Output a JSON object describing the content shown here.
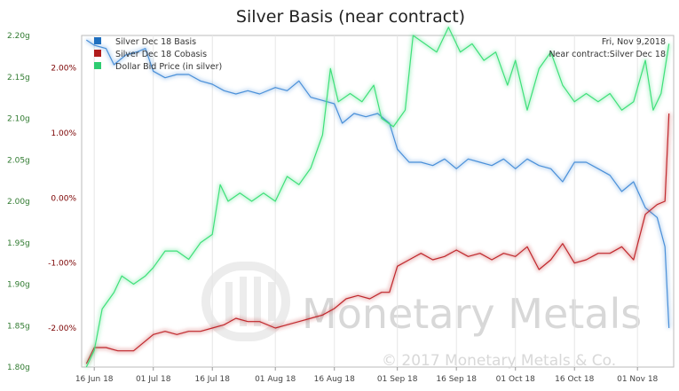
{
  "chart_data": {
    "type": "line",
    "title": "Silver Basis (near contract)",
    "x": [
      "16 Jun 18",
      "01 Jul 18",
      "16 Jul 18",
      "01 Aug 18",
      "16 Aug 18",
      "01 Sep 18",
      "16 Sep 18",
      "01 Oct 18",
      "16 Oct 18",
      "01 Nov 18"
    ],
    "y_left_ticks": [
      "1.80g",
      "1.85g",
      "1.90g",
      "1.95g",
      "2.00g",
      "2.05g",
      "2.10g",
      "2.15g",
      "2.20g"
    ],
    "y_mid_ticks": [
      "-2.00%",
      "-1.00%",
      "0.00%",
      "1.00%",
      "2.00%"
    ],
    "ylim_left": [
      1.8,
      2.2
    ],
    "ylim_mid": [
      -2.6,
      2.5
    ],
    "info": {
      "date": "Fri, Nov 9,2018",
      "contract": "Near contract:Silver Dec 18"
    },
    "watermark": {
      "logo": "Monetary Metals",
      "copyright": "© 2017 Monetary Metals & Co."
    },
    "colors": {
      "basis": "#4a90d9",
      "cobasis": "#c0282d",
      "price": "#3fe07a"
    },
    "legend_placement": "top-left",
    "series": [
      {
        "name": "Silver Dec 18 Basis",
        "color": "#4a90d9",
        "axis": "mid",
        "points": [
          [
            "14 Jun 18",
            2.43
          ],
          [
            "16 Jun 18",
            2.35
          ],
          [
            "19 Jun 18",
            2.3
          ],
          [
            "21 Jun 18",
            2.05
          ],
          [
            "24 Jun 18",
            2.2
          ],
          [
            "27 Jun 18",
            2.25
          ],
          [
            "29 Jun 18",
            2.3
          ],
          [
            "01 Jul 18",
            1.95
          ],
          [
            "04 Jul 18",
            1.85
          ],
          [
            "07 Jul 18",
            1.9
          ],
          [
            "10 Jul 18",
            1.9
          ],
          [
            "13 Jul 18",
            1.8
          ],
          [
            "16 Jul 18",
            1.75
          ],
          [
            "19 Jul 18",
            1.65
          ],
          [
            "22 Jul 18",
            1.6
          ],
          [
            "25 Jul 18",
            1.65
          ],
          [
            "28 Jul 18",
            1.6
          ],
          [
            "01 Aug 18",
            1.7
          ],
          [
            "04 Aug 18",
            1.65
          ],
          [
            "07 Aug 18",
            1.8
          ],
          [
            "10 Aug 18",
            1.55
          ],
          [
            "13 Aug 18",
            1.5
          ],
          [
            "16 Aug 18",
            1.45
          ],
          [
            "18 Aug 18",
            1.15
          ],
          [
            "21 Aug 18",
            1.3
          ],
          [
            "24 Aug 18",
            1.25
          ],
          [
            "27 Aug 18",
            1.3
          ],
          [
            "30 Aug 18",
            1.15
          ],
          [
            "01 Sep 18",
            0.75
          ],
          [
            "04 Sep 18",
            0.55
          ],
          [
            "07 Sep 18",
            0.55
          ],
          [
            "10 Sep 18",
            0.5
          ],
          [
            "13 Sep 18",
            0.6
          ],
          [
            "16 Sep 18",
            0.45
          ],
          [
            "19 Sep 18",
            0.6
          ],
          [
            "22 Sep 18",
            0.55
          ],
          [
            "25 Sep 18",
            0.5
          ],
          [
            "28 Sep 18",
            0.6
          ],
          [
            "01 Oct 18",
            0.45
          ],
          [
            "04 Oct 18",
            0.6
          ],
          [
            "07 Oct 18",
            0.5
          ],
          [
            "10 Oct 18",
            0.45
          ],
          [
            "13 Oct 18",
            0.25
          ],
          [
            "16 Oct 18",
            0.55
          ],
          [
            "19 Oct 18",
            0.55
          ],
          [
            "22 Oct 18",
            0.45
          ],
          [
            "25 Oct 18",
            0.35
          ],
          [
            "28 Oct 18",
            0.1
          ],
          [
            "31 Oct 18",
            0.25
          ],
          [
            "03 Nov 18",
            -0.15
          ],
          [
            "06 Nov 18",
            -0.3
          ],
          [
            "08 Nov 18",
            -0.75
          ],
          [
            "09 Nov 18",
            -2.0
          ]
        ]
      },
      {
        "name": "Silver Dec 18 Cobasis",
        "color": "#c0282d",
        "axis": "mid",
        "points": [
          [
            "14 Jun 18",
            -2.55
          ],
          [
            "16 Jun 18",
            -2.3
          ],
          [
            "19 Jun 18",
            -2.3
          ],
          [
            "22 Jun 18",
            -2.35
          ],
          [
            "26 Jun 18",
            -2.35
          ],
          [
            "29 Jun 18",
            -2.2
          ],
          [
            "01 Jul 18",
            -2.1
          ],
          [
            "04 Jul 18",
            -2.05
          ],
          [
            "07 Jul 18",
            -2.1
          ],
          [
            "10 Jul 18",
            -2.05
          ],
          [
            "13 Jul 18",
            -2.05
          ],
          [
            "16 Jul 18",
            -2.0
          ],
          [
            "19 Jul 18",
            -1.95
          ],
          [
            "22 Jul 18",
            -1.85
          ],
          [
            "25 Jul 18",
            -1.9
          ],
          [
            "28 Jul 18",
            -1.9
          ],
          [
            "01 Aug 18",
            -2.0
          ],
          [
            "04 Aug 18",
            -1.95
          ],
          [
            "07 Aug 18",
            -1.9
          ],
          [
            "10 Aug 18",
            -1.85
          ],
          [
            "13 Aug 18",
            -1.8
          ],
          [
            "16 Aug 18",
            -1.7
          ],
          [
            "19 Aug 18",
            -1.55
          ],
          [
            "22 Aug 18",
            -1.5
          ],
          [
            "25 Aug 18",
            -1.55
          ],
          [
            "28 Aug 18",
            -1.45
          ],
          [
            "30 Aug 18",
            -1.45
          ],
          [
            "01 Sep 18",
            -1.05
          ],
          [
            "04 Sep 18",
            -0.95
          ],
          [
            "07 Sep 18",
            -0.85
          ],
          [
            "10 Sep 18",
            -0.95
          ],
          [
            "13 Sep 18",
            -0.9
          ],
          [
            "16 Sep 18",
            -0.8
          ],
          [
            "19 Sep 18",
            -0.9
          ],
          [
            "22 Sep 18",
            -0.85
          ],
          [
            "25 Sep 18",
            -0.95
          ],
          [
            "28 Sep 18",
            -0.85
          ],
          [
            "01 Oct 18",
            -0.9
          ],
          [
            "04 Oct 18",
            -0.75
          ],
          [
            "07 Oct 18",
            -1.1
          ],
          [
            "10 Oct 18",
            -0.95
          ],
          [
            "13 Oct 18",
            -0.7
          ],
          [
            "16 Oct 18",
            -1.0
          ],
          [
            "19 Oct 18",
            -0.95
          ],
          [
            "22 Oct 18",
            -0.85
          ],
          [
            "25 Oct 18",
            -0.85
          ],
          [
            "28 Oct 18",
            -0.75
          ],
          [
            "31 Oct 18",
            -0.95
          ],
          [
            "03 Nov 18",
            -0.25
          ],
          [
            "06 Nov 18",
            -0.1
          ],
          [
            "08 Nov 18",
            -0.05
          ],
          [
            "09 Nov 18",
            1.3
          ]
        ]
      },
      {
        "name": "Dollar Bid Price (in silver)",
        "color": "#3fe07a",
        "axis": "left",
        "points": [
          [
            "14 Jun 18",
            1.8
          ],
          [
            "16 Jun 18",
            1.82
          ],
          [
            "18 Jun 18",
            1.87
          ],
          [
            "21 Jun 18",
            1.89
          ],
          [
            "23 Jun 18",
            1.91
          ],
          [
            "26 Jun 18",
            1.9
          ],
          [
            "29 Jun 18",
            1.91
          ],
          [
            "01 Jul 18",
            1.92
          ],
          [
            "04 Jul 18",
            1.94
          ],
          [
            "07 Jul 18",
            1.94
          ],
          [
            "10 Jul 18",
            1.93
          ],
          [
            "13 Jul 18",
            1.95
          ],
          [
            "16 Jul 18",
            1.96
          ],
          [
            "18 Jul 18",
            2.02
          ],
          [
            "20 Jul 18",
            2.0
          ],
          [
            "23 Jul 18",
            2.01
          ],
          [
            "26 Jul 18",
            2.0
          ],
          [
            "29 Jul 18",
            2.01
          ],
          [
            "01 Aug 18",
            2.0
          ],
          [
            "04 Aug 18",
            2.03
          ],
          [
            "07 Aug 18",
            2.02
          ],
          [
            "10 Aug 18",
            2.04
          ],
          [
            "13 Aug 18",
            2.08
          ],
          [
            "15 Aug 18",
            2.16
          ],
          [
            "17 Aug 18",
            2.12
          ],
          [
            "20 Aug 18",
            2.13
          ],
          [
            "23 Aug 18",
            2.12
          ],
          [
            "26 Aug 18",
            2.14
          ],
          [
            "28 Aug 18",
            2.1
          ],
          [
            "31 Aug 18",
            2.09
          ],
          [
            "03 Sep 18",
            2.11
          ],
          [
            "05 Sep 18",
            2.2
          ],
          [
            "08 Sep 18",
            2.19
          ],
          [
            "11 Sep 18",
            2.18
          ],
          [
            "14 Sep 18",
            2.21
          ],
          [
            "17 Sep 18",
            2.18
          ],
          [
            "20 Sep 18",
            2.19
          ],
          [
            "23 Sep 18",
            2.17
          ],
          [
            "26 Sep 18",
            2.18
          ],
          [
            "29 Sep 18",
            2.14
          ],
          [
            "01 Oct 18",
            2.17
          ],
          [
            "04 Oct 18",
            2.11
          ],
          [
            "07 Oct 18",
            2.16
          ],
          [
            "10 Oct 18",
            2.18
          ],
          [
            "13 Oct 18",
            2.14
          ],
          [
            "16 Oct 18",
            2.12
          ],
          [
            "19 Oct 18",
            2.13
          ],
          [
            "22 Oct 18",
            2.12
          ],
          [
            "25 Oct 18",
            2.13
          ],
          [
            "28 Oct 18",
            2.11
          ],
          [
            "31 Oct 18",
            2.12
          ],
          [
            "03 Nov 18",
            2.17
          ],
          [
            "05 Nov 18",
            2.11
          ],
          [
            "07 Nov 18",
            2.13
          ],
          [
            "09 Nov 18",
            2.19
          ]
        ]
      }
    ]
  }
}
